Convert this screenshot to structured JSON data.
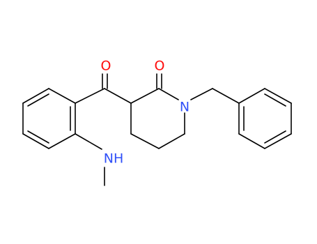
{
  "atoms": [
    {
      "label": "O"
    },
    {
      "label": "O"
    },
    {
      "label": "N"
    },
    {
      "label": "NH"
    }
  ]
}
